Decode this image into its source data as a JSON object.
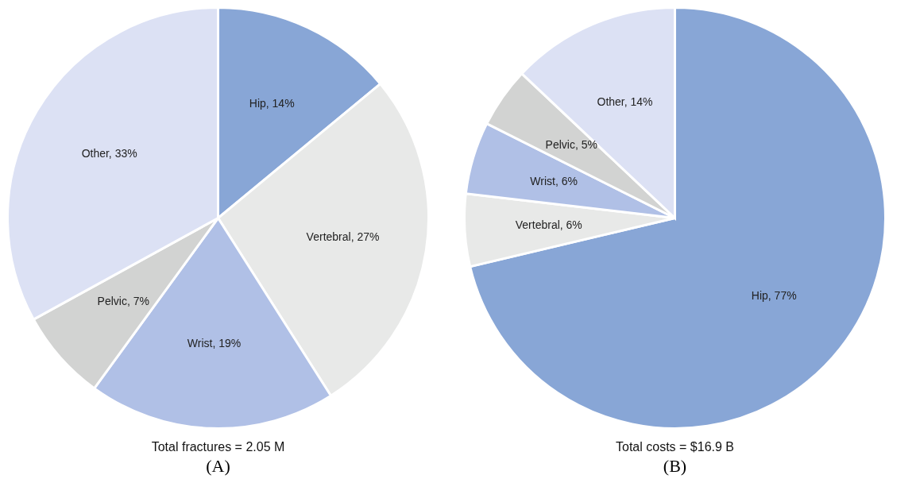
{
  "chart_data": [
    {
      "type": "pie",
      "title": "(A)",
      "annotations": [
        "Total fractures = 2.05 M"
      ],
      "categories": [
        "Hip",
        "Vertebral",
        "Wrist",
        "Pelvic",
        "Other"
      ],
      "values": [
        14,
        27,
        19,
        7,
        33
      ],
      "value_labels": [
        "14%",
        "27%",
        "19%",
        "7%",
        "33%"
      ],
      "colors": [
        "#88a6d6",
        "#e8e9e8",
        "#b0c0e6",
        "#d2d3d2",
        "#dce1f4"
      ],
      "legend": false
    },
    {
      "type": "pie",
      "title": "(B)",
      "annotations": [
        "Total costs = $16.9 B"
      ],
      "categories": [
        "Hip",
        "Vertebral",
        "Wrist",
        "Pelvic",
        "Other"
      ],
      "values": [
        77,
        6,
        6,
        5,
        14
      ],
      "value_labels": [
        "77%",
        "6%",
        "6%",
        "5%",
        "14%"
      ],
      "colors": [
        "#88a6d6",
        "#e8e9e8",
        "#b0c0e6",
        "#d2d3d2",
        "#dce1f4"
      ],
      "legend": false
    }
  ]
}
